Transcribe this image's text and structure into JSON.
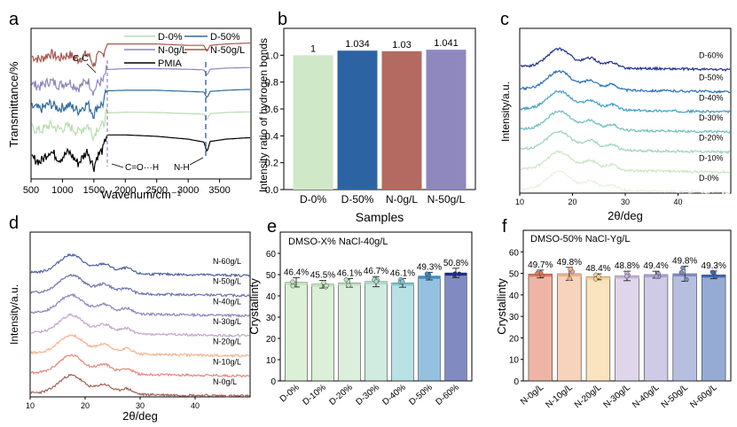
{
  "panel_letters": {
    "a": "a",
    "b": "b",
    "c": "c",
    "d": "d",
    "e": "e",
    "f": "f"
  },
  "colors": {
    "D-0%": "#b9dcb0",
    "D-50%": "#2f6aa0",
    "N-0g/L": "#8f85bd",
    "N-50g/L": "#a5584f",
    "PMIA": "#000000",
    "bar_b": [
      "#cfe8c7",
      "#2c64a3",
      "#b46a61",
      "#8f88bf"
    ],
    "c_series": [
      "#e6f2df",
      "#cce6c3",
      "#9fd1c0",
      "#6fbfc2",
      "#3f9fca",
      "#2a71b5",
      "#27318f"
    ],
    "d_series": [
      "#a3605a",
      "#e5897c",
      "#f3b38e",
      "#c4a3cc",
      "#8e83bb",
      "#6f73ae",
      "#50609f"
    ],
    "e_bars": [
      "#bfe3b6",
      "#c0e3ba",
      "#bde2bf",
      "#a9dbc6",
      "#7fcad0",
      "#3e8ec6",
      "#1a2a8e"
    ],
    "f_bars": [
      "#e0785e",
      "#f0ae85",
      "#f6cd8c",
      "#c6b5da",
      "#a79ed0",
      "#7c8bc6",
      "#3f66b0"
    ]
  },
  "chart_data": [
    {
      "id": "a",
      "type": "line",
      "title": "",
      "xlabel": "Wavenum/cm⁻¹",
      "ylabel": "Transmittance/%",
      "xlim": [
        500,
        4000
      ],
      "x_ticks": [
        "500",
        "1000",
        "1500",
        "2000",
        "2500",
        "3000",
        "3500"
      ],
      "x_tick_values": [
        500,
        1000,
        1500,
        2000,
        2500,
        3000,
        3500
      ],
      "legend": {
        "position": "top-right",
        "entries": [
          "D-0%",
          "D-50%",
          "N-0g/L",
          "N-50g/L",
          "PMIA"
        ]
      },
      "annotations": [
        "C-C",
        "C=O···H",
        "N-H"
      ],
      "series": [
        {
          "name": "N-50g/L",
          "x": [
            500,
            650,
            800,
            950,
            1100,
            1250,
            1400,
            1500,
            1550,
            1650,
            1700,
            2000,
            2500,
            3000,
            3250,
            3300,
            3350,
            3600,
            3950
          ],
          "values": [
            4.62,
            4.5,
            4.72,
            4.55,
            4.68,
            4.5,
            4.72,
            4.3,
            4.6,
            4.7,
            5.05,
            5.05,
            5.05,
            5.0,
            5.0,
            4.78,
            5.0,
            5.05,
            5.08
          ]
        },
        {
          "name": "N-0g/L",
          "x": [
            500,
            650,
            800,
            950,
            1100,
            1250,
            1400,
            1500,
            1550,
            1650,
            1700,
            2000,
            2500,
            3000,
            3250,
            3300,
            3350,
            3600,
            3950
          ],
          "values": [
            3.65,
            3.55,
            3.75,
            3.6,
            3.72,
            3.5,
            3.78,
            3.35,
            3.65,
            3.75,
            4.15,
            4.18,
            4.18,
            4.16,
            4.14,
            3.95,
            4.16,
            4.2,
            4.22
          ]
        },
        {
          "name": "D-50%",
          "x": [
            500,
            650,
            800,
            950,
            1100,
            1250,
            1400,
            1500,
            1550,
            1650,
            1700,
            2000,
            2500,
            3000,
            3250,
            3300,
            3350,
            3600,
            3950
          ],
          "values": [
            2.85,
            2.75,
            2.95,
            2.78,
            2.9,
            2.7,
            2.95,
            2.55,
            2.85,
            2.95,
            3.4,
            3.42,
            3.42,
            3.38,
            3.36,
            3.15,
            3.38,
            3.42,
            3.45
          ]
        },
        {
          "name": "D-0%",
          "x": [
            500,
            650,
            800,
            950,
            1100,
            1250,
            1400,
            1500,
            1550,
            1650,
            1700,
            2000,
            2500,
            3000,
            3250,
            3300,
            3350,
            3600,
            3950
          ],
          "values": [
            2.1,
            2.0,
            2.2,
            2.05,
            2.15,
            1.95,
            2.2,
            1.8,
            2.1,
            2.2,
            2.62,
            2.65,
            2.64,
            2.6,
            2.58,
            2.4,
            2.6,
            2.64,
            2.66
          ]
        },
        {
          "name": "PMIA",
          "x": [
            500,
            650,
            800,
            950,
            1100,
            1250,
            1400,
            1500,
            1550,
            1650,
            1700,
            2000,
            2500,
            3000,
            3250,
            3300,
            3350,
            3600,
            3950
          ],
          "values": [
            1.05,
            0.9,
            1.3,
            1.0,
            1.25,
            0.85,
            1.3,
            0.7,
            1.1,
            1.35,
            1.85,
            1.85,
            1.8,
            1.7,
            1.6,
            1.25,
            1.62,
            1.7,
            1.75
          ]
        }
      ],
      "ylim": [
        0.3,
        5.6
      ]
    },
    {
      "id": "b",
      "type": "bar",
      "title": "",
      "xlabel": "Samples",
      "ylabel": "Intensity ratio of hydrogen bonds",
      "categories": [
        "D-0%",
        "D-50%",
        "N-0g/L",
        "N-50g/L"
      ],
      "values": [
        1,
        1.034,
        1.03,
        1.041
      ],
      "value_labels": [
        "1",
        "1.034",
        "1.03",
        "1.041"
      ],
      "ylim": [
        0,
        1.2
      ],
      "y_ticks": [
        "0.0",
        "0.2",
        "0.4",
        "0.6",
        "0.8",
        "1.0"
      ],
      "y_tick_values": [
        0,
        0.2,
        0.4,
        0.6,
        0.8,
        1.0
      ]
    },
    {
      "id": "c",
      "type": "line",
      "title": "",
      "xlabel": "2θ/deg",
      "ylabel": "Intensity/a.u.",
      "xlim": [
        10,
        50
      ],
      "x_ticks": [
        "10",
        "20",
        "30",
        "40"
      ],
      "x_tick_values": [
        10,
        20,
        30,
        40
      ],
      "ylim": [
        0,
        8.2
      ],
      "series": [
        {
          "name": "D-0%",
          "offset": 0.2
        },
        {
          "name": "D-10%",
          "offset": 1.2
        },
        {
          "name": "D-20%",
          "offset": 2.2
        },
        {
          "name": "D-30%",
          "offset": 3.2
        },
        {
          "name": "D-40%",
          "offset": 4.2
        },
        {
          "name": "D-50%",
          "offset": 5.2
        },
        {
          "name": "D-60%",
          "offset": 6.3
        }
      ],
      "peaks_deg": [
        17.5,
        23.5,
        27.5
      ]
    },
    {
      "id": "d",
      "type": "line",
      "title": "",
      "xlabel": "2θ/deg",
      "ylabel": "Intensity/a.u.",
      "xlim": [
        10,
        50
      ],
      "x_ticks": [
        "10",
        "20",
        "30",
        "40"
      ],
      "x_tick_values": [
        10,
        20,
        30,
        40
      ],
      "ylim": [
        0,
        8.2
      ],
      "series": [
        {
          "name": "N-0g/L",
          "offset": 0.2
        },
        {
          "name": "N-10g/L",
          "offset": 1.2
        },
        {
          "name": "N-20g/L",
          "offset": 2.2
        },
        {
          "name": "N-30g/L",
          "offset": 3.2
        },
        {
          "name": "N-40g/L",
          "offset": 4.2
        },
        {
          "name": "N-50g/L",
          "offset": 5.2
        },
        {
          "name": "N-60g/L",
          "offset": 6.2
        }
      ],
      "peaks_deg": [
        17.5,
        23.5,
        27.5
      ]
    },
    {
      "id": "e",
      "type": "bar",
      "title": "DMSO-X% NaCl-40g/L",
      "xlabel": "",
      "ylabel": "Crystallinty",
      "categories": [
        "D-0%",
        "D-10%",
        "D-20%",
        "D-30%",
        "D-40%",
        "D-50%",
        "D-60%"
      ],
      "values": [
        46.4,
        45.5,
        46.1,
        46.7,
        46.1,
        49.3,
        50.8
      ],
      "value_labels": [
        "46.4%",
        "45.5%",
        "46.1%",
        "46.7%",
        "46.1%",
        "49.3%",
        "50.8%"
      ],
      "errors": [
        2.2,
        1.8,
        2.0,
        2.4,
        2.0,
        1.8,
        2.2
      ],
      "ylim": [
        0,
        70
      ],
      "y_ticks": [
        "0",
        "10",
        "20",
        "30",
        "40",
        "50",
        "60"
      ],
      "y_tick_values": [
        0,
        10,
        20,
        30,
        40,
        50,
        60
      ]
    },
    {
      "id": "f",
      "type": "bar",
      "title": "DMSO-50% NaCl-Yg/L",
      "xlabel": "",
      "ylabel": "Crystallinty",
      "categories": [
        "N-0g/L",
        "N-10g/L",
        "N-20g/L",
        "N-30g/L",
        "N-40g/L",
        "N-50g/L",
        "N-60g/L"
      ],
      "values": [
        49.7,
        49.8,
        48.4,
        48.8,
        49.4,
        49.8,
        49.3
      ],
      "value_labels": [
        "49.7%",
        "49.8%",
        "48.4%",
        "48.8%",
        "49.4%",
        "49.8%",
        "49.3%"
      ],
      "errors": [
        1.8,
        3.0,
        1.4,
        2.2,
        1.6,
        3.5,
        1.8
      ],
      "ylim": [
        0,
        70
      ],
      "y_ticks": [
        "0",
        "10",
        "20",
        "30",
        "40",
        "50",
        "60"
      ],
      "y_tick_values": [
        0,
        10,
        20,
        30,
        40,
        50,
        60
      ]
    }
  ]
}
